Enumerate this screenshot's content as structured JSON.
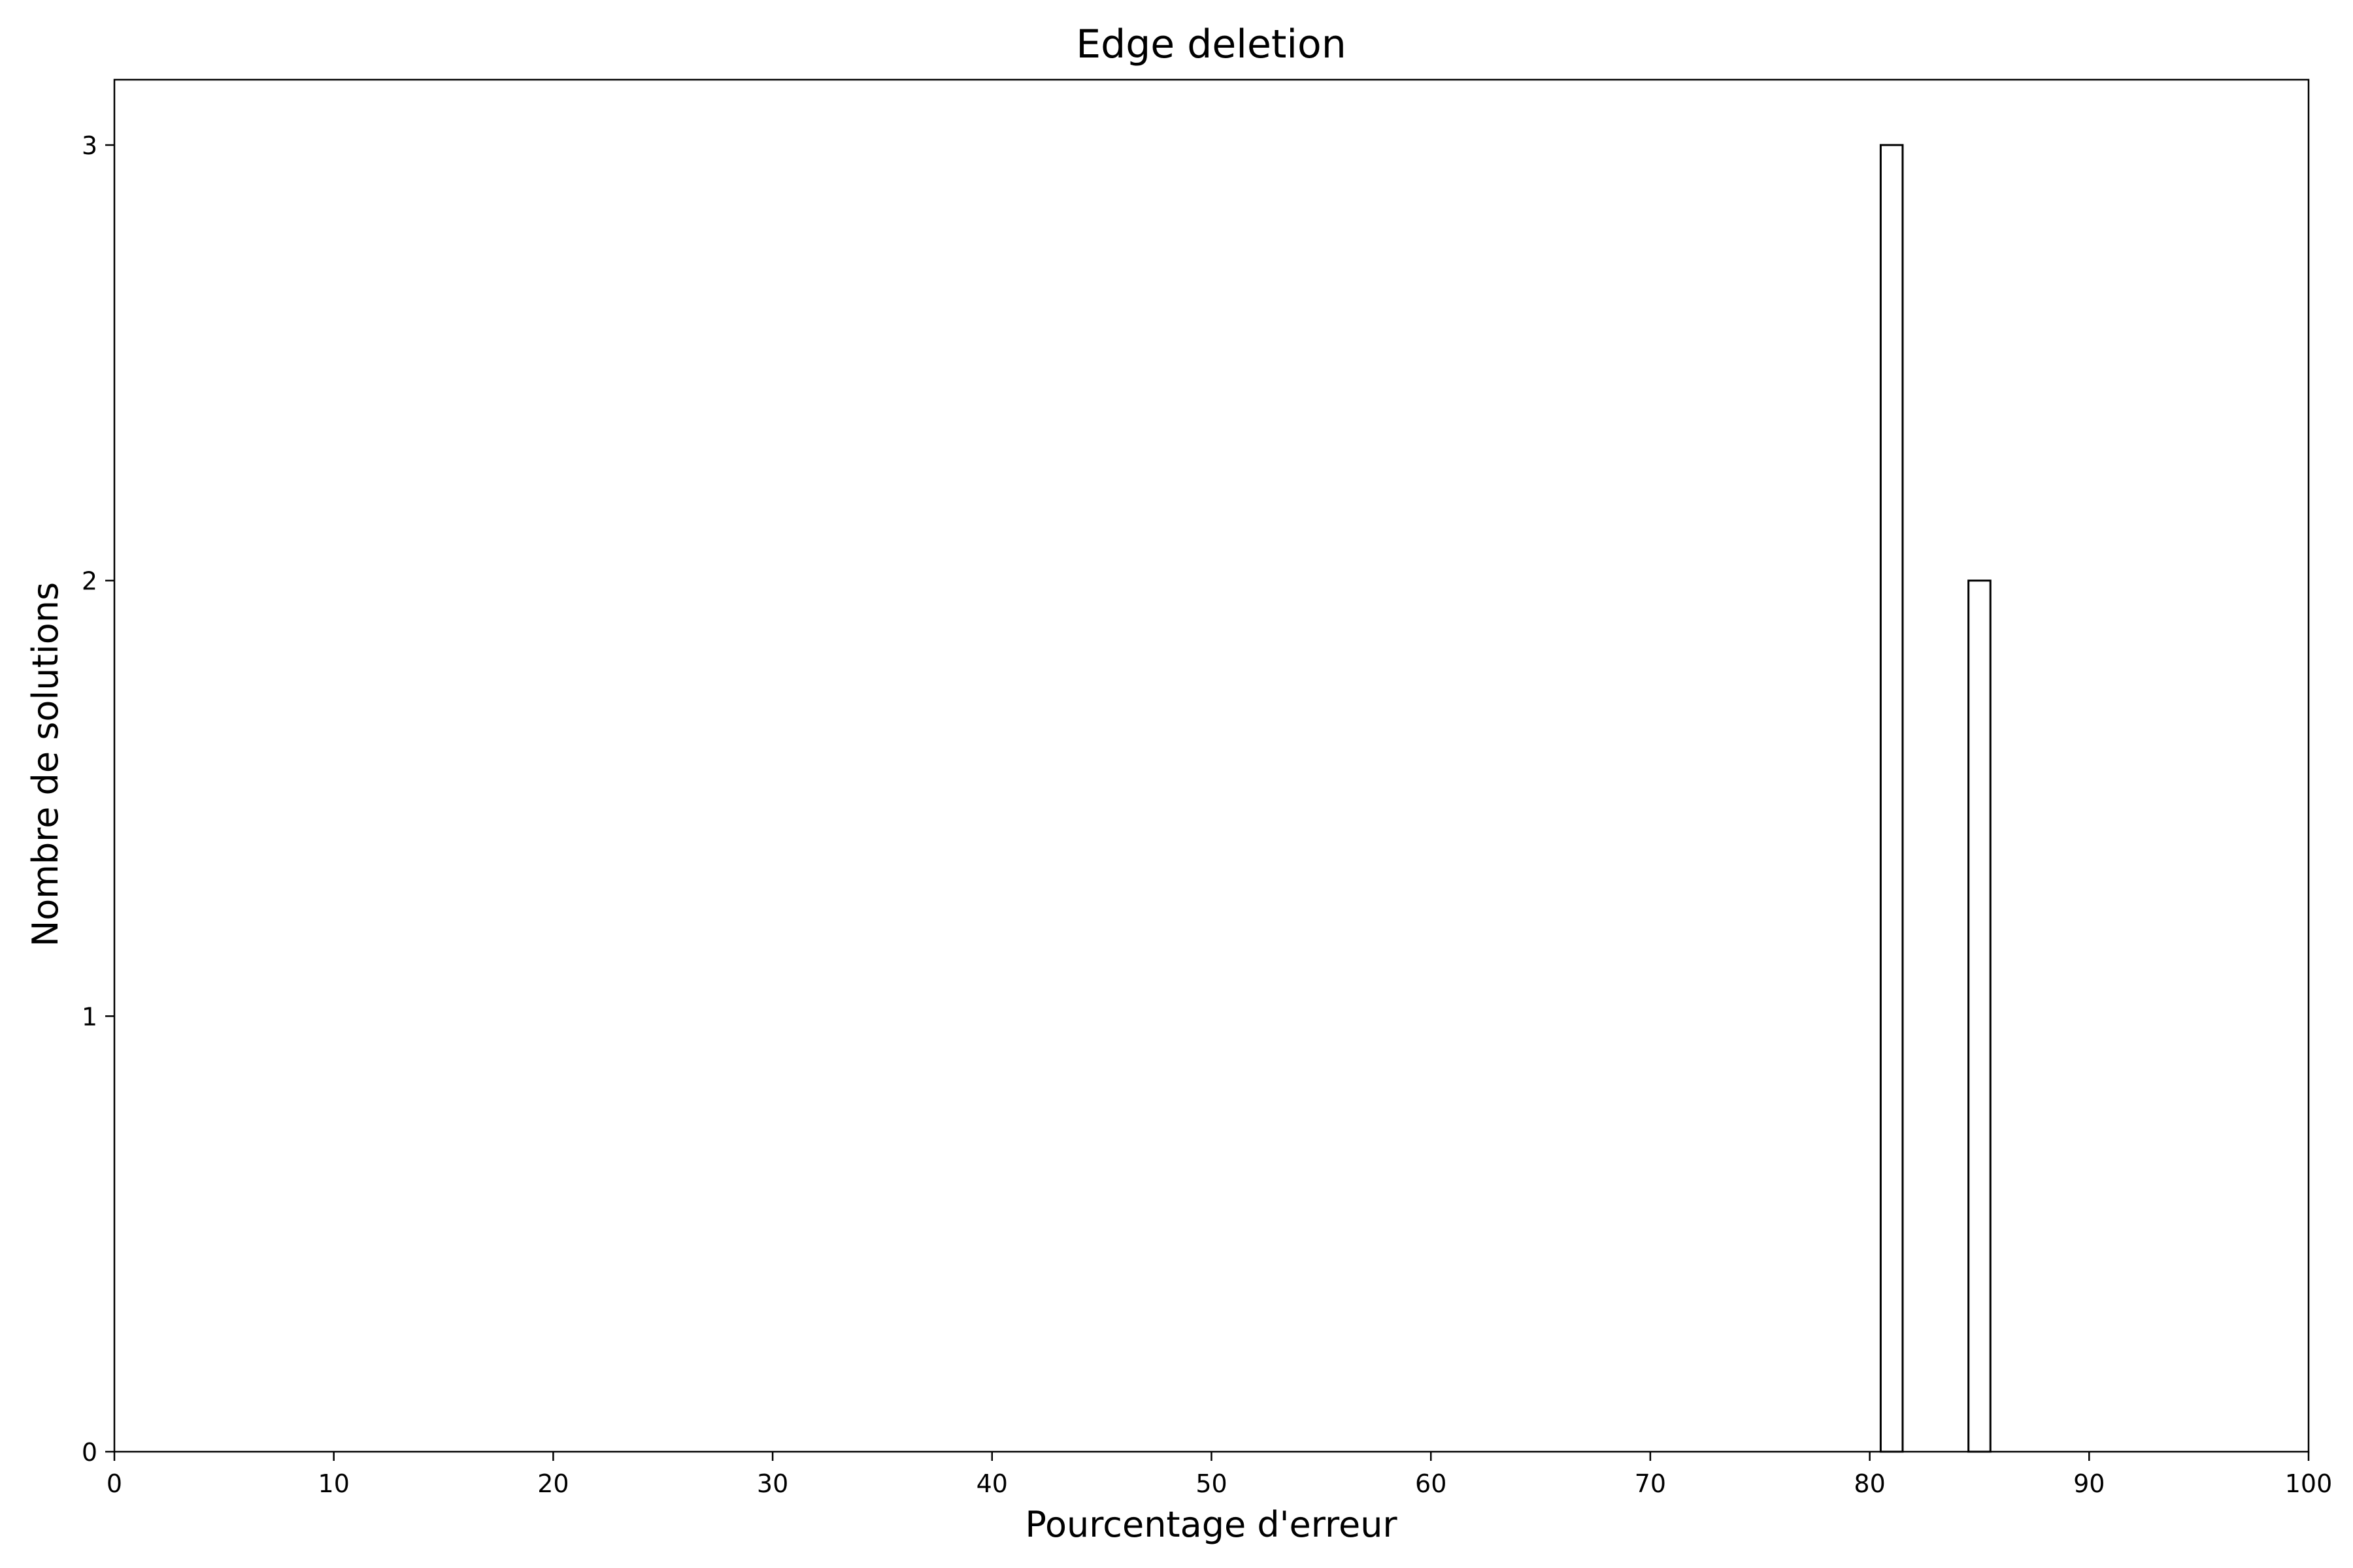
{
  "chart_data": {
    "type": "bar",
    "title": "Edge deletion",
    "xlabel": "Pourcentage d'erreur",
    "ylabel": "Nombre de solutions",
    "xlim": [
      0,
      100
    ],
    "ylim": [
      0,
      3.15
    ],
    "xticks": [
      0,
      10,
      20,
      30,
      40,
      50,
      60,
      70,
      80,
      90,
      100
    ],
    "yticks": [
      0,
      1,
      2,
      3
    ],
    "grid": false,
    "bar_fill": "#ffffff",
    "bar_edge": "#000000",
    "bars": [
      {
        "x_start": 80.5,
        "x_end": 81.5,
        "value": 3
      },
      {
        "x_start": 84.5,
        "x_end": 85.5,
        "value": 2
      }
    ]
  }
}
